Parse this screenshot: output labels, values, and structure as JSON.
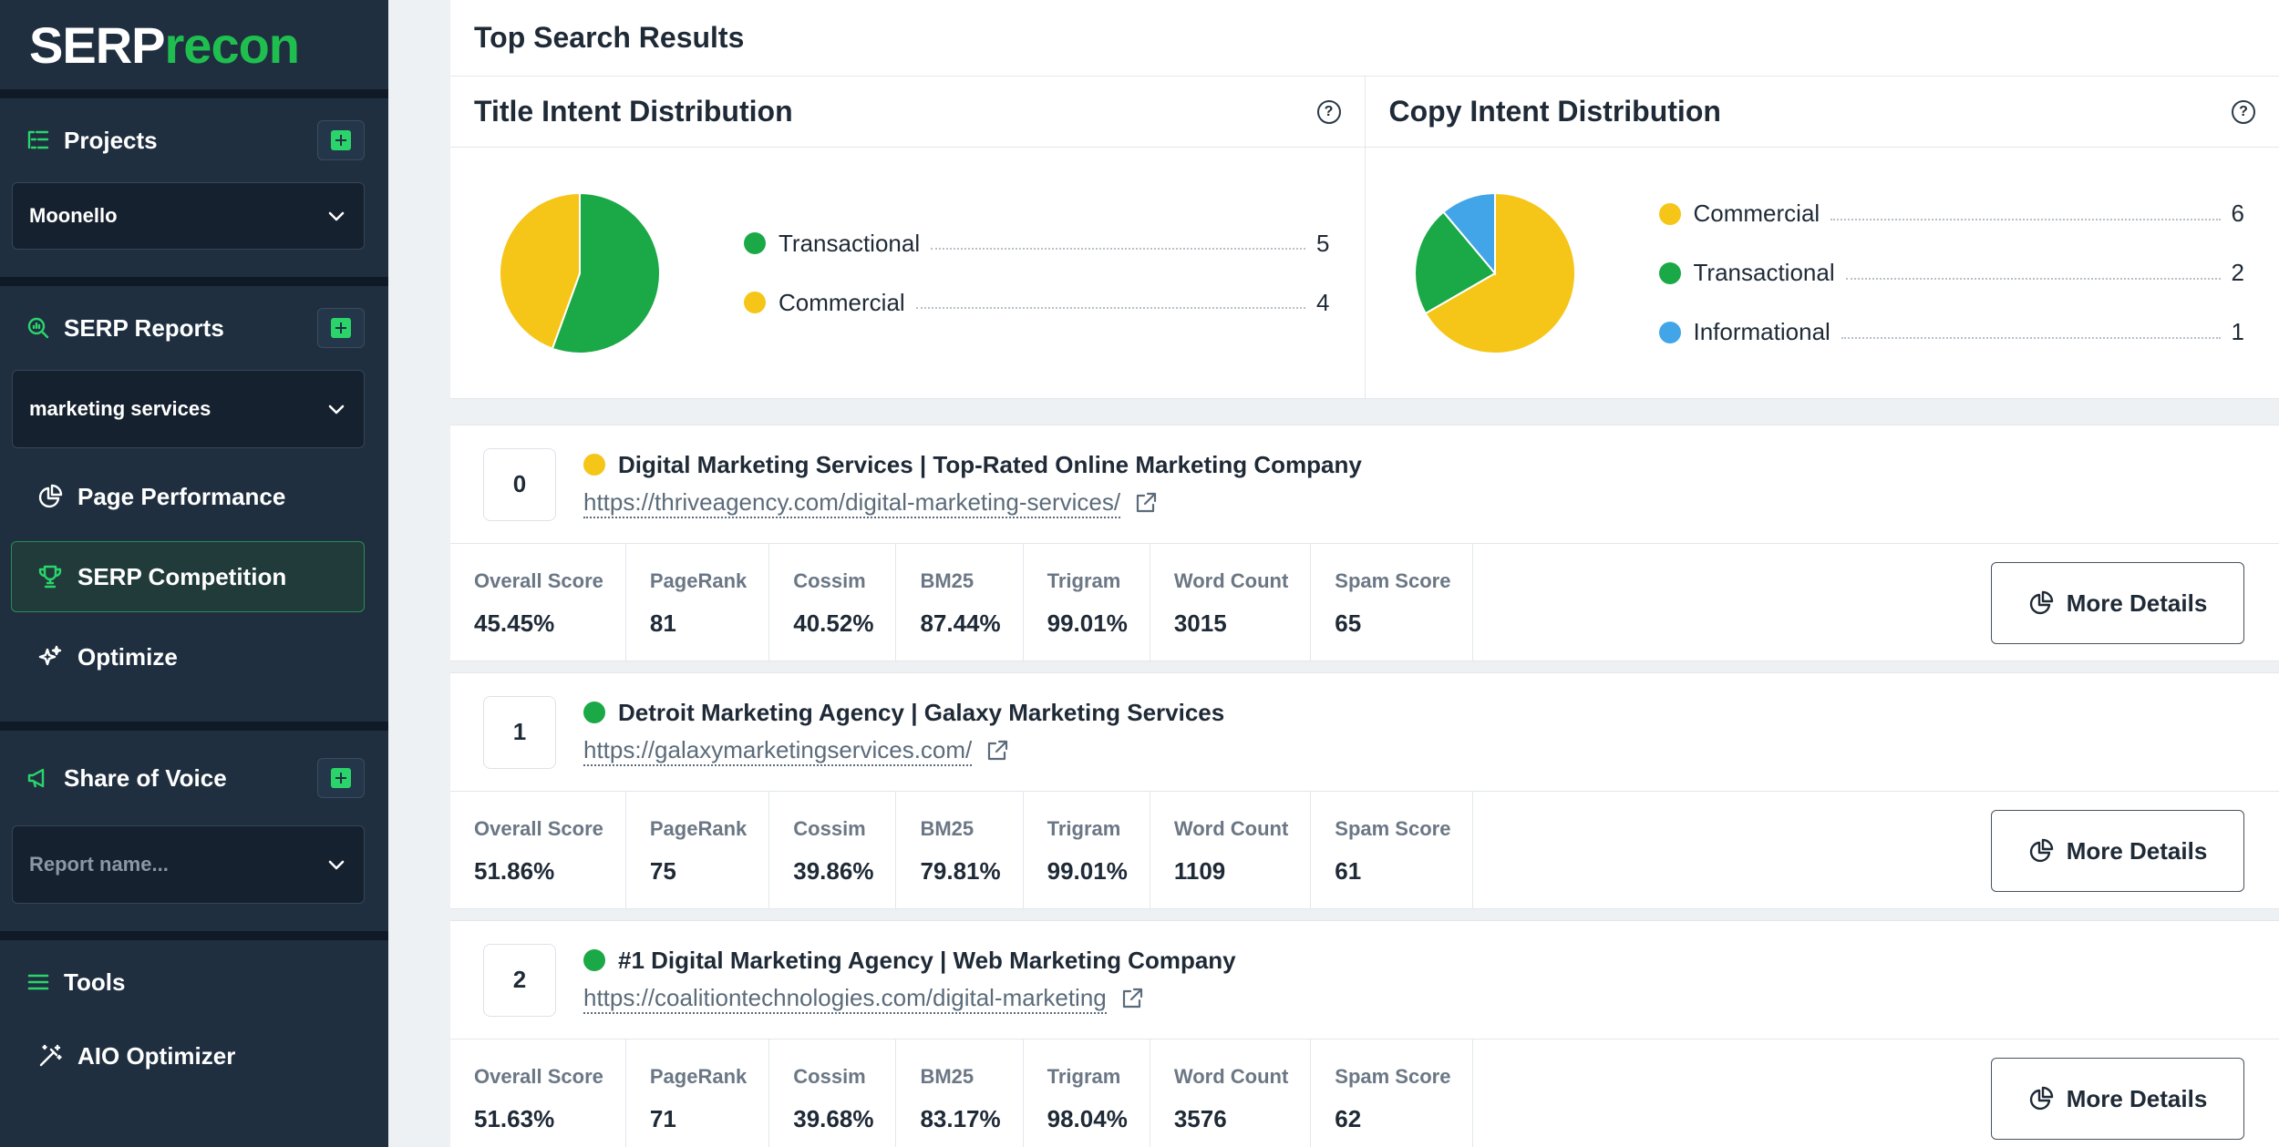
{
  "logo": {
    "part1": "SERP",
    "part2": "recon"
  },
  "colors": {
    "accent": "#2bd46b",
    "commercial": "#f5c518",
    "transactional": "#1aa946",
    "informational": "#42a5e8"
  },
  "sidebar": {
    "projects": {
      "title": "Projects",
      "selected": "Moonello"
    },
    "serp_reports": {
      "title": "SERP Reports",
      "selected": "marketing services",
      "items": [
        {
          "label": "Page Performance",
          "icon": "pie-chart-icon",
          "active": false
        },
        {
          "label": "SERP Competition",
          "icon": "trophy-icon",
          "active": true
        },
        {
          "label": "Optimize",
          "icon": "sparkles-icon",
          "active": false
        }
      ]
    },
    "share_of_voice": {
      "title": "Share of Voice",
      "placeholder": "Report name..."
    },
    "tools": {
      "title": "Tools",
      "items": [
        {
          "label": "AIO Optimizer",
          "icon": "magic-wand-icon"
        }
      ]
    }
  },
  "main": {
    "title": "Top Search Results",
    "title_intent": {
      "heading": "Title Intent Distribution",
      "items": [
        {
          "name": "Transactional",
          "value": 5,
          "color": "#1aa946"
        },
        {
          "name": "Commercial",
          "value": 4,
          "color": "#f5c518"
        }
      ]
    },
    "copy_intent": {
      "heading": "Copy Intent Distribution",
      "items": [
        {
          "name": "Commercial",
          "value": 6,
          "color": "#f5c518"
        },
        {
          "name": "Transactional",
          "value": 2,
          "color": "#1aa946"
        },
        {
          "name": "Informational",
          "value": 1,
          "color": "#42a5e8"
        }
      ]
    },
    "metric_labels": [
      "Overall Score",
      "PageRank",
      "Cossim",
      "BM25",
      "Trigram",
      "Word Count",
      "Spam Score"
    ],
    "more_details_label": "More Details",
    "results": [
      {
        "rank": "0",
        "intent_color": "#f5c518",
        "title": "Digital Marketing Services | Top-Rated Online Marketing Company",
        "url": "https://thriveagency.com/digital-marketing-services/",
        "metrics": [
          "45.45%",
          "81",
          "40.52%",
          "87.44%",
          "99.01%",
          "3015",
          "65"
        ]
      },
      {
        "rank": "1",
        "intent_color": "#1aa946",
        "title": "Detroit Marketing Agency | Galaxy Marketing Services",
        "url": "https://galaxymarketingservices.com/",
        "metrics": [
          "51.86%",
          "75",
          "39.86%",
          "79.81%",
          "99.01%",
          "1109",
          "61"
        ]
      },
      {
        "rank": "2",
        "intent_color": "#1aa946",
        "title": "#1 Digital Marketing Agency | Web Marketing Company",
        "url": "https://coalitiontechnologies.com/digital-marketing",
        "metrics": [
          "51.63%",
          "71",
          "39.68%",
          "83.17%",
          "98.04%",
          "3576",
          "62"
        ]
      }
    ]
  }
}
